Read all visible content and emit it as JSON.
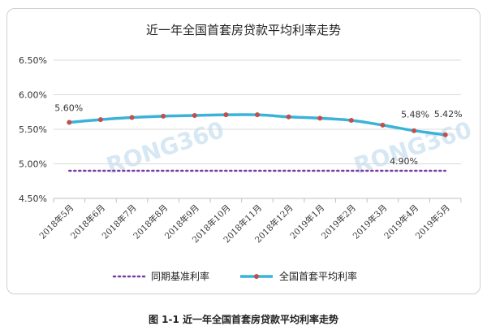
{
  "chart_data": {
    "type": "line",
    "title": "近一年全国首套房贷款平均利率走势",
    "categories": [
      "2018年5月",
      "2018年6月",
      "2018年7月",
      "2018年8月",
      "2018年9月",
      "2018年10月",
      "2018年11月",
      "2018年12月",
      "2019年1月",
      "2019年2月",
      "2019年3月",
      "2019年4月",
      "2019年5月"
    ],
    "ylim": [
      4.5,
      6.5
    ],
    "yticks": [
      "4.50%",
      "5.00%",
      "5.50%",
      "6.00%",
      "6.50%"
    ],
    "grid": true,
    "legend_position": "bottom",
    "series": [
      {
        "name": "同期基准利率",
        "style": "dotted",
        "color": "#7a3aa0",
        "values": [
          4.9,
          4.9,
          4.9,
          4.9,
          4.9,
          4.9,
          4.9,
          4.9,
          4.9,
          4.9,
          4.9,
          4.9,
          4.9
        ]
      },
      {
        "name": "全国首套平均利率",
        "style": "solid-with-markers",
        "color": "#3bb3d9",
        "marker_color": "#c0504d",
        "values": [
          5.6,
          5.64,
          5.67,
          5.69,
          5.7,
          5.71,
          5.71,
          5.68,
          5.66,
          5.63,
          5.56,
          5.48,
          5.42
        ]
      }
    ],
    "data_labels": [
      "5.60%",
      "5.48%",
      "5.42%",
      "4.90%"
    ],
    "watermarks": [
      "RONG360",
      "RONG360"
    ]
  },
  "caption": "图 1-1  近一年全国首套房贷款平均利率走势"
}
